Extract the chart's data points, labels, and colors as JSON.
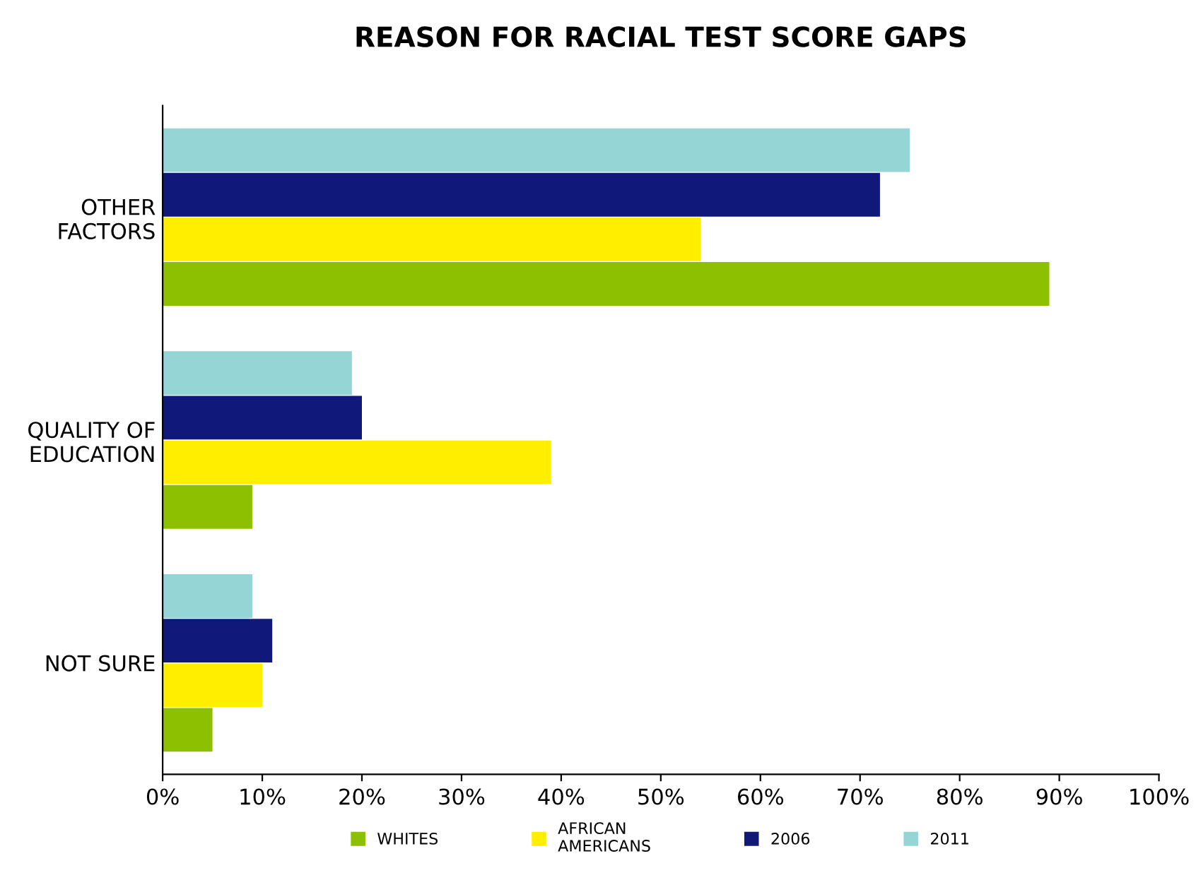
{
  "chart_data": {
    "type": "bar",
    "orientation": "horizontal",
    "title": "REASON FOR RACIAL TEST SCORE GAPS",
    "categories": [
      "OTHER\nFACTORS",
      "QUALITY OF\nEDUCATION",
      "NOT SURE"
    ],
    "series": [
      {
        "name": "WHITES",
        "color": "#8cc000",
        "values": [
          89,
          9,
          5
        ]
      },
      {
        "name": "AFRICAN\nAMERICANS",
        "color": "#ffee00",
        "values": [
          54,
          39,
          10
        ]
      },
      {
        "name": "2006",
        "color": "#10187a",
        "values": [
          72,
          20,
          11
        ]
      },
      {
        "name": "2011",
        "color": "#96d5d5",
        "values": [
          75,
          19,
          9
        ]
      }
    ],
    "xlim": [
      0,
      100
    ],
    "xticks": [
      {
        "value": 0,
        "label": "0%"
      },
      {
        "value": 10,
        "label": "10%"
      },
      {
        "value": 20,
        "label": "20%"
      },
      {
        "value": 30,
        "label": "30%"
      },
      {
        "value": 40,
        "label": "40%"
      },
      {
        "value": 50,
        "label": "50%"
      },
      {
        "value": 60,
        "label": "60%"
      },
      {
        "value": 70,
        "label": "70%"
      },
      {
        "value": 80,
        "label": "80%"
      },
      {
        "value": 90,
        "label": "90%"
      },
      {
        "value": 100,
        "label": "100%"
      }
    ],
    "grid": false,
    "legend": "bottom"
  }
}
